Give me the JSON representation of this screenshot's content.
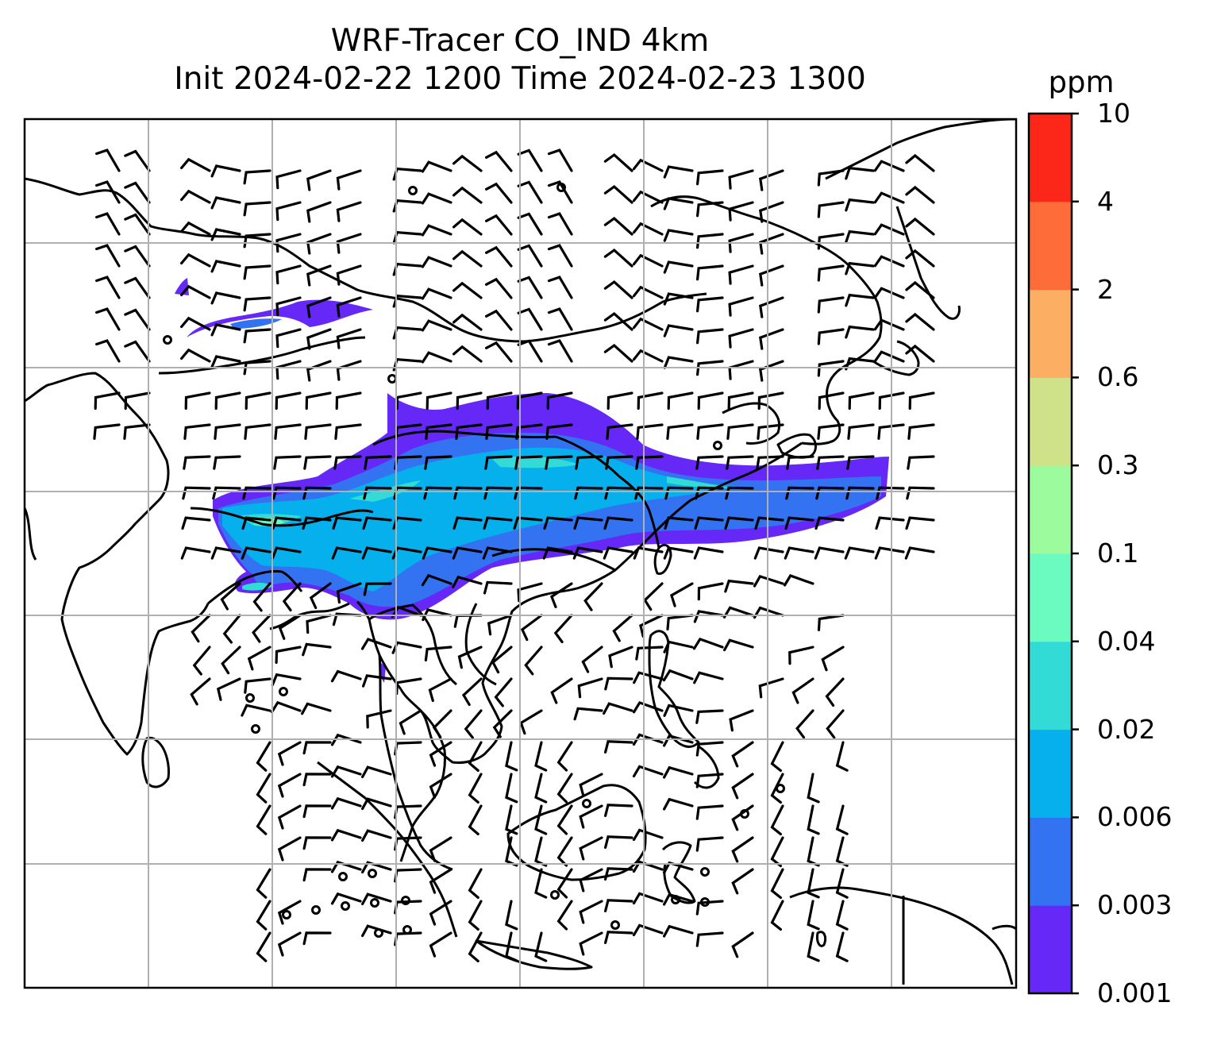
{
  "title": {
    "line1": "WRF-Tracer CO_IND 4km",
    "line2": "Init 2024-02-22 1200 Time 2024-02-23 1300"
  },
  "colorbar": {
    "unit": "ppm",
    "ticks": [
      "0.001",
      "0.003",
      "0.006",
      "0.02",
      "0.04",
      "0.1",
      "0.3",
      "0.6",
      "2",
      "4",
      "10"
    ],
    "colors": [
      "#6528f7",
      "#3373f1",
      "#06b0ec",
      "#32dbd6",
      "#6bfbc0",
      "#9cfb9c",
      "#cfe28a",
      "#fcae63",
      "#fe6c3a",
      "#fc2719"
    ]
  },
  "map": {
    "projection": "lat-lon",
    "gridlines": true,
    "coastlines": true,
    "plume_levels_shown": [
      "0.001",
      "0.003",
      "0.006",
      "0.02",
      "0.04"
    ],
    "wind_barbs": true
  }
}
